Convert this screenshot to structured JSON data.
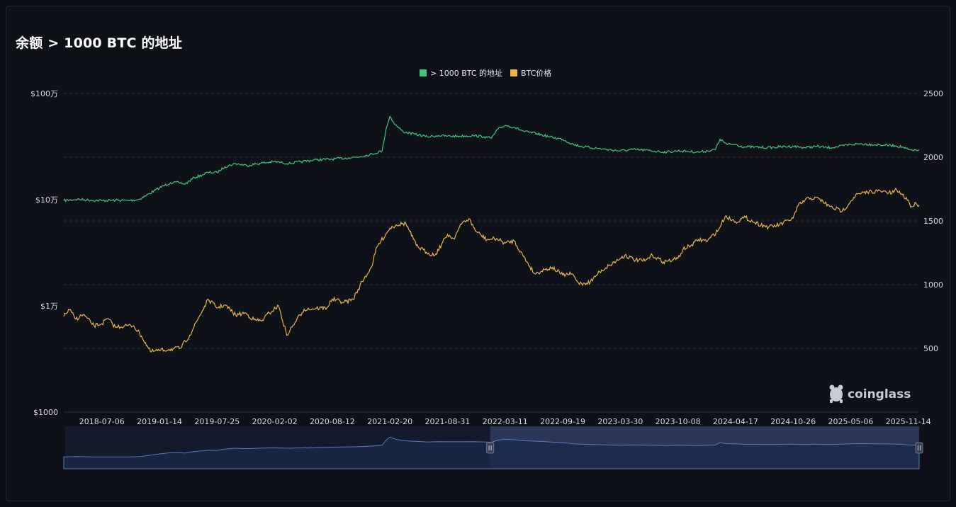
{
  "header": {
    "title": "余额 > 1000 BTC 的地址"
  },
  "watermark": {
    "text": "coinglass"
  },
  "chart_data": {
    "type": "line",
    "title": "余额 > 1000 BTC 的地址",
    "legend_position": "top-center",
    "grid": true,
    "x_ticks": [
      "2018-07-06",
      "2019-01-14",
      "2019-07-25",
      "2020-02-02",
      "2020-08-12",
      "2021-02-20",
      "2021-08-31",
      "2022-03-11",
      "2022-09-19",
      "2023-03-30",
      "2023-10-08",
      "2024-04-17",
      "2024-10-26",
      "2025-05-06",
      "2025-11-14"
    ],
    "y_left": {
      "scale": "log",
      "ticks": [
        "$100万",
        "$10万",
        "$1万",
        "$1000"
      ],
      "tick_values": [
        1000000,
        100000,
        10000,
        1000
      ],
      "range": [
        1000,
        1000000
      ]
    },
    "y_right": {
      "ticks": [
        "2500",
        "2000",
        "1500",
        "1000",
        "500"
      ],
      "tick_values": [
        2500,
        2000,
        1500,
        1000,
        500
      ],
      "range": [
        0,
        2500
      ]
    },
    "series": [
      {
        "name": "> 1000 BTC 的地址",
        "axis": "right",
        "color": "#3ec77f",
        "dates": [
          "2018-03-01",
          "2018-04-15",
          "2018-06-01",
          "2018-07-06",
          "2018-08-20",
          "2018-10-05",
          "2018-11-05",
          "2018-12-01",
          "2019-01-14",
          "2019-02-20",
          "2019-03-20",
          "2019-04-10",
          "2019-05-10",
          "2019-06-05",
          "2019-06-25",
          "2019-07-25",
          "2019-08-20",
          "2019-09-25",
          "2019-11-01",
          "2019-12-15",
          "2020-02-02",
          "2020-03-20",
          "2020-05-01",
          "2020-06-20",
          "2020-08-12",
          "2020-10-05",
          "2020-11-15",
          "2020-12-25",
          "2021-01-25",
          "2021-02-08",
          "2021-02-20",
          "2021-03-10",
          "2021-04-05",
          "2021-05-15",
          "2021-06-25",
          "2021-08-01",
          "2021-08-31",
          "2021-10-10",
          "2021-11-25",
          "2021-12-31",
          "2022-01-10",
          "2022-01-25",
          "2022-02-15",
          "2022-03-11",
          "2022-04-10",
          "2022-05-15",
          "2022-06-25",
          "2022-08-05",
          "2022-09-19",
          "2022-10-25",
          "2022-12-01",
          "2023-01-10",
          "2023-02-15",
          "2023-03-30",
          "2023-05-10",
          "2023-06-20",
          "2023-08-01",
          "2023-09-01",
          "2023-10-08",
          "2023-11-10",
          "2023-12-15",
          "2024-01-15",
          "2024-02-10",
          "2024-02-25",
          "2024-03-20",
          "2024-04-17",
          "2024-05-15",
          "2024-06-20",
          "2024-08-01",
          "2024-09-10",
          "2024-10-26",
          "2024-12-05",
          "2025-01-10",
          "2025-02-15",
          "2025-03-20",
          "2025-05-06",
          "2025-06-10",
          "2025-07-15",
          "2025-08-25",
          "2025-09-30",
          "2025-10-25",
          "2025-11-14",
          "2025-12-01",
          "2025-12-20"
        ],
        "values": [
          1660,
          1670,
          1662,
          1660,
          1662,
          1660,
          1668,
          1700,
          1760,
          1800,
          1800,
          1790,
          1840,
          1860,
          1880,
          1880,
          1925,
          1950,
          1935,
          1952,
          1965,
          1950,
          1965,
          1980,
          1985,
          1995,
          2005,
          2025,
          2050,
          2230,
          2320,
          2255,
          2200,
          2180,
          2160,
          2170,
          2165,
          2165,
          2170,
          2160,
          2155,
          2150,
          2220,
          2250,
          2235,
          2200,
          2185,
          2160,
          2140,
          2100,
          2080,
          2070,
          2060,
          2050,
          2060,
          2055,
          2045,
          2040,
          2050,
          2045,
          2040,
          2050,
          2060,
          2140,
          2100,
          2100,
          2080,
          2080,
          2075,
          2080,
          2085,
          2075,
          2085,
          2075,
          2080,
          2100,
          2105,
          2100,
          2095,
          2090,
          2080,
          2060,
          2050,
          2060
        ]
      },
      {
        "name": "BTC价格",
        "axis": "left",
        "color": "#e9b649",
        "dates": [
          "2018-03-01",
          "2018-03-20",
          "2018-04-10",
          "2018-05-05",
          "2018-06-10",
          "2018-07-06",
          "2018-07-25",
          "2018-08-20",
          "2018-09-20",
          "2018-10-20",
          "2018-11-15",
          "2018-12-15",
          "2019-01-14",
          "2019-02-15",
          "2019-03-25",
          "2019-04-25",
          "2019-05-25",
          "2019-06-26",
          "2019-07-25",
          "2019-08-20",
          "2019-09-25",
          "2019-10-26",
          "2019-11-25",
          "2019-12-20",
          "2020-01-15",
          "2020-02-15",
          "2020-03-13",
          "2020-04-10",
          "2020-05-10",
          "2020-06-20",
          "2020-07-25",
          "2020-08-12",
          "2020-09-20",
          "2020-10-20",
          "2020-11-20",
          "2020-12-20",
          "2021-01-08",
          "2021-02-20",
          "2021-03-13",
          "2021-04-14",
          "2021-05-19",
          "2021-06-22",
          "2021-07-20",
          "2021-08-31",
          "2021-09-20",
          "2021-10-20",
          "2021-11-10",
          "2021-12-05",
          "2022-01-10",
          "2022-02-10",
          "2022-03-11",
          "2022-04-10",
          "2022-05-12",
          "2022-06-18",
          "2022-07-20",
          "2022-08-15",
          "2022-09-19",
          "2022-10-20",
          "2022-11-10",
          "2022-11-21",
          "2022-12-20",
          "2023-01-20",
          "2023-02-20",
          "2023-03-30",
          "2023-04-14",
          "2023-05-20",
          "2023-06-20",
          "2023-07-15",
          "2023-08-20",
          "2023-09-20",
          "2023-10-08",
          "2023-10-25",
          "2023-11-20",
          "2023-12-15",
          "2024-01-15",
          "2024-02-20",
          "2024-03-14",
          "2024-04-17",
          "2024-05-20",
          "2024-06-20",
          "2024-08-05",
          "2024-09-10",
          "2024-10-26",
          "2024-11-12",
          "2024-12-17",
          "2025-01-20",
          "2025-02-25",
          "2025-04-08",
          "2025-05-06",
          "2025-05-22",
          "2025-07-14",
          "2025-08-14",
          "2025-09-20",
          "2025-10-06",
          "2025-10-25",
          "2025-11-14",
          "2025-11-22",
          "2025-12-10",
          "2025-12-20"
        ],
        "values": [
          8000,
          9200,
          7500,
          8300,
          6500,
          6800,
          7600,
          6300,
          6500,
          6500,
          5200,
          3700,
          3800,
          3900,
          4000,
          5300,
          7800,
          11500,
          9600,
          10200,
          8200,
          8600,
          7400,
          7200,
          8600,
          10000,
          5300,
          7000,
          9300,
          9500,
          9600,
          11600,
          10800,
          11500,
          17000,
          23000,
          36000,
          54000,
          58000,
          60000,
          37000,
          32000,
          30000,
          47000,
          43000,
          61000,
          66000,
          50000,
          42000,
          43000,
          39000,
          41000,
          29000,
          20000,
          22000,
          23000,
          19500,
          20000,
          16500,
          16200,
          16800,
          21000,
          24000,
          28000,
          30000,
          27000,
          26500,
          30000,
          26000,
          27000,
          28000,
          34000,
          37000,
          42000,
          41000,
          52000,
          70000,
          62000,
          68000,
          61000,
          55000,
          58000,
          67000,
          88000,
          104000,
          102000,
          86000,
          78000,
          97000,
          110000,
          120000,
          120000,
          115000,
          124000,
          111000,
          99000,
          85000,
          92000,
          89000
        ]
      }
    ]
  },
  "navigator": {
    "selected_range": [
      "2022-01-20",
      "2025-12-20"
    ]
  }
}
